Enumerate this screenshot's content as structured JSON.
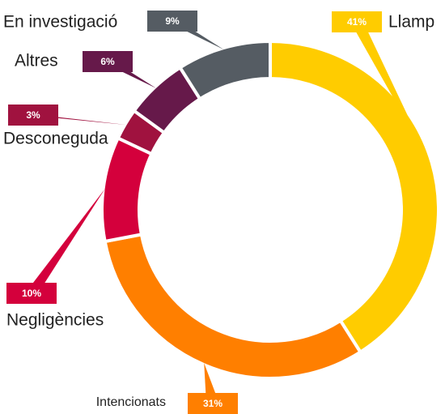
{
  "chart_data": {
    "type": "donut",
    "categories": [
      "Llamp",
      "Intencionats",
      "Negligències",
      "Desconeguda",
      "Altres",
      "En investigació"
    ],
    "values": [
      41,
      31,
      10,
      3,
      6,
      9
    ],
    "value_labels": [
      "41%",
      "31%",
      "10%",
      "3%",
      "6%",
      "9%"
    ],
    "colors": [
      "#ffcc00",
      "#ff7f00",
      "#d4003c",
      "#a0123f",
      "#66194a",
      "#555c63"
    ]
  }
}
